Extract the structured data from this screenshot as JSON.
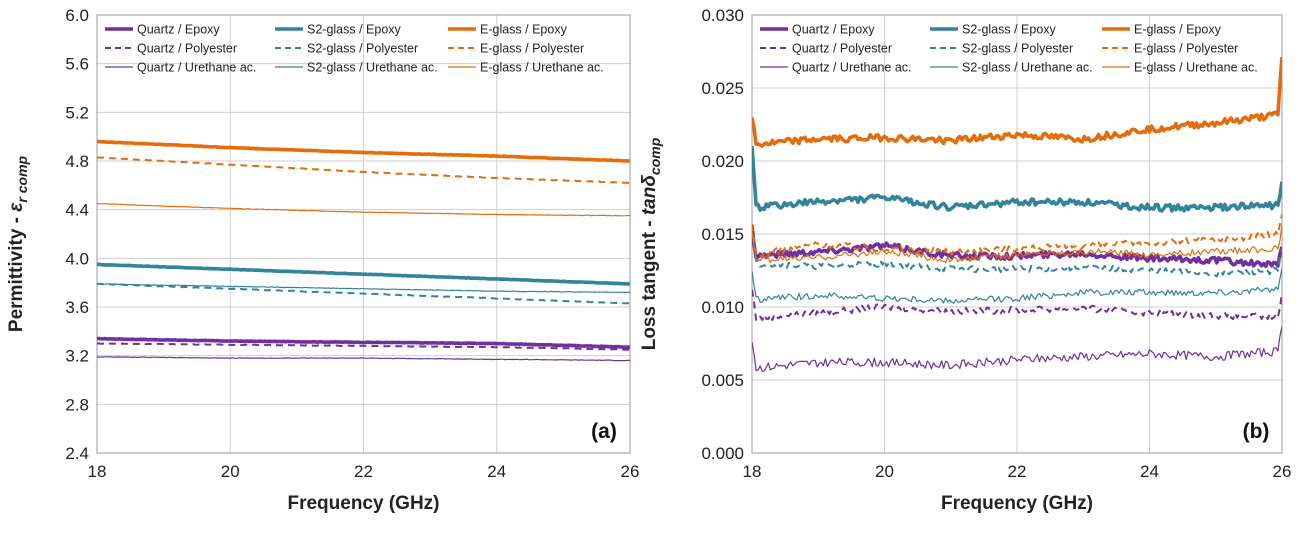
{
  "chart_data": [
    {
      "type": "line",
      "panel_label": "(a)",
      "xlabel": "Frequency (GHz)",
      "ylabel_main": "Permittivity  - ",
      "ylabel_symbol": "ε",
      "ylabel_subscript": "r comp",
      "xlim": [
        18,
        26
      ],
      "ylim": [
        2.4,
        6.0
      ],
      "xticks": [
        "18",
        "20",
        "22",
        "24",
        "26"
      ],
      "yticks": [
        "2.4",
        "2.8",
        "3.2",
        "3.6",
        "4.0",
        "4.4",
        "4.8",
        "5.2",
        "5.6",
        "6.0"
      ],
      "ytick_values": [
        2.4,
        2.8,
        3.2,
        3.6,
        4.0,
        4.4,
        4.8,
        5.2,
        5.6,
        6.0
      ],
      "grid": true,
      "legend_position": "top",
      "series": [
        {
          "name": "Quartz / Epoxy",
          "color": "#7030a0",
          "style": "thick",
          "x": [
            18,
            20,
            22,
            24,
            26
          ],
          "y": [
            3.34,
            3.32,
            3.31,
            3.3,
            3.27
          ]
        },
        {
          "name": "S2-glass / Epoxy",
          "color": "#31849b",
          "style": "thick",
          "x": [
            18,
            20,
            22,
            24,
            26
          ],
          "y": [
            3.95,
            3.91,
            3.87,
            3.83,
            3.79
          ]
        },
        {
          "name": "E-glass / Epoxy",
          "color": "#e46c0a",
          "style": "thick",
          "x": [
            18,
            20,
            22,
            24,
            26
          ],
          "y": [
            4.96,
            4.91,
            4.87,
            4.84,
            4.8
          ]
        },
        {
          "name": "Quartz / Polyester",
          "color": "#7030a0",
          "style": "dashed",
          "x": [
            18,
            20,
            22,
            24,
            26
          ],
          "y": [
            3.3,
            3.29,
            3.28,
            3.27,
            3.25
          ]
        },
        {
          "name": "S2-glass / Polyester",
          "color": "#31849b",
          "style": "dashed",
          "x": [
            18,
            20,
            22,
            24,
            26
          ],
          "y": [
            3.79,
            3.75,
            3.71,
            3.67,
            3.63
          ]
        },
        {
          "name": "E-glass / Polyester",
          "color": "#e46c0a",
          "style": "dashed",
          "x": [
            18,
            20,
            22,
            24,
            26
          ],
          "y": [
            4.83,
            4.77,
            4.71,
            4.66,
            4.62
          ]
        },
        {
          "name": "Quartz / Urethane ac.",
          "color": "#7030a0",
          "style": "thin",
          "x": [
            18,
            20,
            22,
            24,
            26
          ],
          "y": [
            3.19,
            3.18,
            3.18,
            3.17,
            3.16
          ]
        },
        {
          "name": "S2-glass / Urethane ac.",
          "color": "#31849b",
          "style": "thin",
          "x": [
            18,
            20,
            22,
            24,
            26
          ],
          "y": [
            3.79,
            3.77,
            3.75,
            3.73,
            3.72
          ]
        },
        {
          "name": "E-glass / Urethane ac.",
          "color": "#e46c0a",
          "style": "thin",
          "x": [
            18,
            20,
            22,
            24,
            26
          ],
          "y": [
            4.45,
            4.41,
            4.38,
            4.36,
            4.35
          ]
        }
      ]
    },
    {
      "type": "line",
      "panel_label": "(b)",
      "xlabel": "Frequency (GHz)",
      "ylabel_main": "Loss tangent  - ",
      "ylabel_symbol": "tanδ",
      "ylabel_subscript": "comp",
      "xlim": [
        18,
        26
      ],
      "ylim": [
        0.0,
        0.03
      ],
      "xticks": [
        "18",
        "20",
        "22",
        "24",
        "26"
      ],
      "yticks": [
        "0.000",
        "0.005",
        "0.010",
        "0.015",
        "0.020",
        "0.025",
        "0.030"
      ],
      "ytick_values": [
        0.0,
        0.005,
        0.01,
        0.015,
        0.02,
        0.025,
        0.03
      ],
      "grid": true,
      "legend_position": "top",
      "series": [
        {
          "name": "Quartz / Epoxy",
          "color": "#7030a0",
          "style": "thick",
          "x": [
            18,
            19,
            20,
            21,
            22,
            23,
            24,
            25,
            26
          ],
          "y": [
            0.0135,
            0.0138,
            0.0142,
            0.0135,
            0.0135,
            0.0137,
            0.0133,
            0.0132,
            0.0128
          ]
        },
        {
          "name": "S2-glass / Epoxy",
          "color": "#31849b",
          "style": "thick",
          "x": [
            18,
            19,
            20,
            21,
            22,
            23,
            24,
            25,
            26
          ],
          "y": [
            0.0168,
            0.0172,
            0.0175,
            0.0168,
            0.0172,
            0.0172,
            0.0168,
            0.0168,
            0.017
          ]
        },
        {
          "name": "E-glass / Epoxy",
          "color": "#e46c0a",
          "style": "thick",
          "x": [
            18,
            19,
            20,
            21,
            22,
            23,
            24,
            25,
            26
          ],
          "y": [
            0.0211,
            0.0215,
            0.0216,
            0.0214,
            0.0218,
            0.0215,
            0.0222,
            0.0226,
            0.0232
          ]
        },
        {
          "name": "Quartz / Polyester",
          "color": "#7030a0",
          "style": "dashed",
          "x": [
            18,
            19,
            20,
            21,
            22,
            23,
            24,
            25,
            26
          ],
          "y": [
            0.0092,
            0.0096,
            0.01,
            0.0097,
            0.0098,
            0.0099,
            0.0096,
            0.0094,
            0.0093
          ]
        },
        {
          "name": "S2-glass / Polyester",
          "color": "#31849b",
          "style": "dashed",
          "x": [
            18,
            19,
            20,
            21,
            22,
            23,
            24,
            25,
            26
          ],
          "y": [
            0.013,
            0.0128,
            0.013,
            0.0126,
            0.0126,
            0.0127,
            0.0125,
            0.0123,
            0.0125
          ]
        },
        {
          "name": "E-glass / Polyester",
          "color": "#e46c0a",
          "style": "dashed",
          "x": [
            18,
            19,
            20,
            21,
            22,
            23,
            24,
            25,
            26
          ],
          "y": [
            0.0135,
            0.0143,
            0.014,
            0.0138,
            0.014,
            0.0142,
            0.0144,
            0.0146,
            0.015
          ]
        },
        {
          "name": "Quartz / Urethane ac.",
          "color": "#7030a0",
          "style": "thin",
          "x": [
            18,
            19,
            20,
            21,
            22,
            23,
            24,
            25,
            26
          ],
          "y": [
            0.0058,
            0.0062,
            0.0062,
            0.006,
            0.0064,
            0.0066,
            0.0068,
            0.0066,
            0.007
          ]
        },
        {
          "name": "S2-glass / Urethane ac.",
          "color": "#31849b",
          "style": "thin",
          "x": [
            18,
            19,
            20,
            21,
            22,
            23,
            24,
            25,
            26
          ],
          "y": [
            0.0105,
            0.0108,
            0.0106,
            0.0104,
            0.0106,
            0.011,
            0.011,
            0.011,
            0.0112
          ]
        },
        {
          "name": "E-glass / Urethane ac.",
          "color": "#e46c0a",
          "style": "thin",
          "x": [
            18,
            19,
            20,
            21,
            22,
            23,
            24,
            25,
            26
          ],
          "y": [
            0.0132,
            0.0134,
            0.0138,
            0.0132,
            0.0136,
            0.0138,
            0.0136,
            0.0138,
            0.014
          ]
        }
      ]
    }
  ]
}
